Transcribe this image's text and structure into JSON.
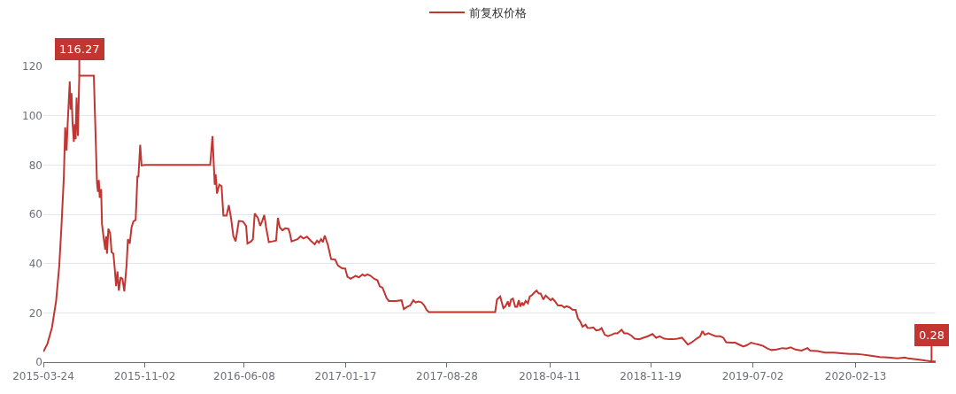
{
  "chart_data": {
    "type": "line",
    "series": [
      {
        "name": "前复权价格",
        "color": "#c23531",
        "x": [
          "2015-03-24",
          "2015-04-02",
          "2015-04-12",
          "2015-04-21",
          "2015-04-28",
          "2015-05-03",
          "2015-05-08",
          "2015-05-11",
          "2015-05-14",
          "2015-05-16",
          "2015-05-21",
          "2015-05-23",
          "2015-05-25",
          "2015-05-27",
          "2015-05-30",
          "2015-06-01",
          "2015-06-03",
          "2015-06-05",
          "2015-06-08",
          "2015-06-11",
          "2015-07-13",
          "2015-07-20",
          "2015-07-22",
          "2015-07-24",
          "2015-07-26",
          "2015-07-29",
          "2015-07-31",
          "2015-08-04",
          "2015-08-07",
          "2015-08-09",
          "2015-08-11",
          "2015-08-14",
          "2015-08-18",
          "2015-08-21",
          "2015-08-25",
          "2015-08-28",
          "2015-08-31",
          "2015-09-03",
          "2015-09-06",
          "2015-09-10",
          "2015-09-14",
          "2015-09-18",
          "2015-09-23",
          "2015-09-26",
          "2015-09-30",
          "2015-10-04",
          "2015-10-08",
          "2015-10-13",
          "2015-10-17",
          "2015-10-19",
          "2015-10-23",
          "2015-10-26",
          "2015-11-02",
          "2016-03-25",
          "2016-03-30",
          "2016-04-04",
          "2016-04-06",
          "2016-04-09",
          "2016-04-14",
          "2016-04-19",
          "2016-04-23",
          "2016-04-30",
          "2016-05-05",
          "2016-05-10",
          "2016-05-15",
          "2016-05-20",
          "2016-05-27",
          "2016-06-05",
          "2016-06-12",
          "2016-06-15",
          "2016-06-23",
          "2016-06-27",
          "2016-07-01",
          "2016-07-08",
          "2016-07-13",
          "2016-07-17",
          "2016-07-22",
          "2016-07-26",
          "2016-08-01",
          "2016-08-09",
          "2016-08-17",
          "2016-08-21",
          "2016-08-25",
          "2016-08-31",
          "2016-09-06",
          "2016-09-13",
          "2016-09-16",
          "2016-09-20",
          "2016-10-03",
          "2016-10-10",
          "2016-10-16",
          "2016-10-24",
          "2016-11-01",
          "2016-11-10",
          "2016-11-15",
          "2016-11-19",
          "2016-11-24",
          "2016-11-28",
          "2016-12-02",
          "2016-12-09",
          "2016-12-16",
          "2016-12-25",
          "2016-12-31",
          "2017-01-05",
          "2017-01-10",
          "2017-01-16",
          "2017-01-21",
          "2017-01-28",
          "2017-02-02",
          "2017-02-08",
          "2017-02-15",
          "2017-02-23",
          "2017-02-28",
          "2017-03-06",
          "2017-03-13",
          "2017-03-21",
          "2017-03-28",
          "2017-04-02",
          "2017-04-08",
          "2017-04-12",
          "2017-04-17",
          "2017-04-22",
          "2017-04-30",
          "2017-05-07",
          "2017-05-20",
          "2017-05-25",
          "2017-06-01",
          "2017-06-08",
          "2017-06-15",
          "2017-06-20",
          "2017-06-26",
          "2017-07-03",
          "2017-07-09",
          "2017-07-14",
          "2017-07-19",
          "2017-12-12",
          "2017-12-16",
          "2017-12-23",
          "2017-12-30",
          "2018-01-03",
          "2018-01-09",
          "2018-01-12",
          "2018-01-16",
          "2018-01-20",
          "2018-01-25",
          "2018-01-29",
          "2018-02-02",
          "2018-02-05",
          "2018-02-09",
          "2018-02-12",
          "2018-02-17",
          "2018-02-22",
          "2018-02-26",
          "2018-03-03",
          "2018-03-08",
          "2018-03-13",
          "2018-03-18",
          "2018-03-22",
          "2018-03-28",
          "2018-04-02",
          "2018-04-06",
          "2018-04-13",
          "2018-04-17",
          "2018-04-22",
          "2018-04-29",
          "2018-05-07",
          "2018-05-13",
          "2018-05-18",
          "2018-05-25",
          "2018-05-31",
          "2018-06-07",
          "2018-06-12",
          "2018-06-17",
          "2018-06-22",
          "2018-06-29",
          "2018-07-03",
          "2018-07-09",
          "2018-07-16",
          "2018-07-22",
          "2018-07-29",
          "2018-08-03",
          "2018-08-10",
          "2018-08-17",
          "2018-08-25",
          "2018-09-01",
          "2018-09-07",
          "2018-09-16",
          "2018-09-22",
          "2018-09-29",
          "2018-10-08",
          "2018-10-15",
          "2018-10-25",
          "2018-11-03",
          "2018-11-13",
          "2018-11-23",
          "2018-12-01",
          "2018-12-09",
          "2018-12-19",
          "2018-12-29",
          "2019-01-07",
          "2019-01-17",
          "2019-01-27",
          "2019-02-02",
          "2019-02-09",
          "2019-02-18",
          "2019-02-28",
          "2019-03-08",
          "2019-03-13",
          "2019-03-18",
          "2019-03-26",
          "2019-04-03",
          "2019-04-11",
          "2019-04-21",
          "2019-04-28",
          "2019-05-04",
          "2019-05-14",
          "2019-05-24",
          "2019-06-02",
          "2019-06-11",
          "2019-06-19",
          "2019-06-28",
          "2019-07-06",
          "2019-07-15",
          "2019-07-24",
          "2019-08-03",
          "2019-08-12",
          "2019-08-23",
          "2019-09-05",
          "2019-09-14",
          "2019-09-23",
          "2019-10-04",
          "2019-10-17",
          "2019-10-30",
          "2019-11-05",
          "2019-11-21",
          "2019-12-08",
          "2019-12-27",
          "2020-01-12",
          "2020-02-01",
          "2020-02-13",
          "2020-02-27",
          "2020-03-14",
          "2020-04-06",
          "2020-04-25",
          "2020-05-15",
          "2020-06-01",
          "2020-06-07",
          "2020-06-29",
          "2020-07-16",
          "2020-07-29",
          "2020-08-07"
        ],
        "values": [
          4.2,
          7.5,
          14.1,
          24.8,
          39.2,
          55.9,
          75,
          95.3,
          85.8,
          95,
          113.9,
          102.5,
          109.1,
          97.7,
          89.4,
          96.5,
          90.5,
          107.3,
          91.8,
          116.27,
          116.27,
          72.6,
          69.1,
          73.9,
          66.7,
          70.2,
          55.9,
          49.9,
          45.7,
          51.1,
          44,
          54.1,
          52.3,
          44.6,
          44,
          38,
          30.8,
          36.8,
          29,
          34.4,
          33.8,
          28.7,
          39.2,
          49.9,
          48.1,
          54.7,
          57.1,
          57.7,
          75.6,
          75,
          88.2,
          79.8,
          80,
          80,
          91.7,
          72,
          76.2,
          68.4,
          72,
          71.4,
          59.5,
          59.5,
          63.7,
          58.3,
          51.1,
          49,
          57.3,
          57.1,
          55.3,
          48.1,
          49,
          49.9,
          60.3,
          58.5,
          55.3,
          57.1,
          59.7,
          54.7,
          48.7,
          49,
          49.3,
          58.5,
          54.7,
          53.5,
          54.3,
          54.1,
          52.5,
          49,
          49.9,
          51.1,
          50.2,
          50.9,
          49.3,
          47.8,
          49.3,
          48.5,
          49.9,
          48.7,
          51.4,
          47.5,
          41.8,
          41.6,
          39.2,
          38.6,
          38,
          38,
          34.6,
          33.8,
          34.4,
          35,
          34.4,
          35.6,
          35,
          35.6,
          35,
          33.8,
          33.2,
          30.8,
          30.2,
          28.4,
          26,
          24.8,
          24.8,
          24.8,
          25.1,
          21.5,
          22.4,
          23,
          25.1,
          24.2,
          24.6,
          24.2,
          23,
          21.2,
          20.3,
          20.3,
          25.4,
          26.6,
          21.9,
          22.5,
          24.6,
          22.5,
          25.4,
          25.8,
          22.5,
          22.5,
          25.1,
          22.5,
          24.2,
          23,
          24.8,
          23.9,
          26.6,
          27.2,
          28.2,
          29,
          27.8,
          27.8,
          25.4,
          27,
          26.3,
          25.1,
          25.8,
          24.8,
          23,
          23,
          22.2,
          22.7,
          22.2,
          21.3,
          21.2,
          17.8,
          16.5,
          14.4,
          15.2,
          13.9,
          13.8,
          14.1,
          12.9,
          13.1,
          13.8,
          11.1,
          10.5,
          11.1,
          11.7,
          11.7,
          13.1,
          11.7,
          11.7,
          10.7,
          9.5,
          9.3,
          9.9,
          10.5,
          11.4,
          9.9,
          10.5,
          9.5,
          9.3,
          9.3,
          9.5,
          9.9,
          8.7,
          7.1,
          8.1,
          9.5,
          10.5,
          12.6,
          11.1,
          11.7,
          11.1,
          10.5,
          10.5,
          9.9,
          8.1,
          7.9,
          7.9,
          7.1,
          6.3,
          6.9,
          7.9,
          7.5,
          7.1,
          6.6,
          5.5,
          4.9,
          5.1,
          5.7,
          5.5,
          6,
          5.1,
          4.7,
          5.7,
          4.7,
          4.5,
          3.9,
          3.9,
          3.6,
          3.3,
          3.3,
          3.1,
          2.7,
          2.1,
          1.9,
          1.5,
          1.9,
          1.5,
          1.1,
          0.6,
          0.28,
          0.28
        ]
      }
    ],
    "xlim": [
      "2015-03-24",
      "2020-08-07"
    ],
    "xticks": [
      "2015-03-24",
      "2015-11-02",
      "2016-06-08",
      "2017-01-17",
      "2017-08-28",
      "2018-04-11",
      "2018-11-19",
      "2019-07-02",
      "2020-02-13"
    ],
    "ylim": [
      0,
      120
    ],
    "yticks": [
      0,
      20,
      40,
      60,
      80,
      100,
      120
    ],
    "annotations": [
      {
        "text": "116.27",
        "x": "2015-06-11",
        "y": 116.27
      },
      {
        "text": "0.28",
        "x": "2020-07-29",
        "y": 0.28
      }
    ],
    "grid": "y",
    "legend": "top",
    "line_style": "solid"
  }
}
